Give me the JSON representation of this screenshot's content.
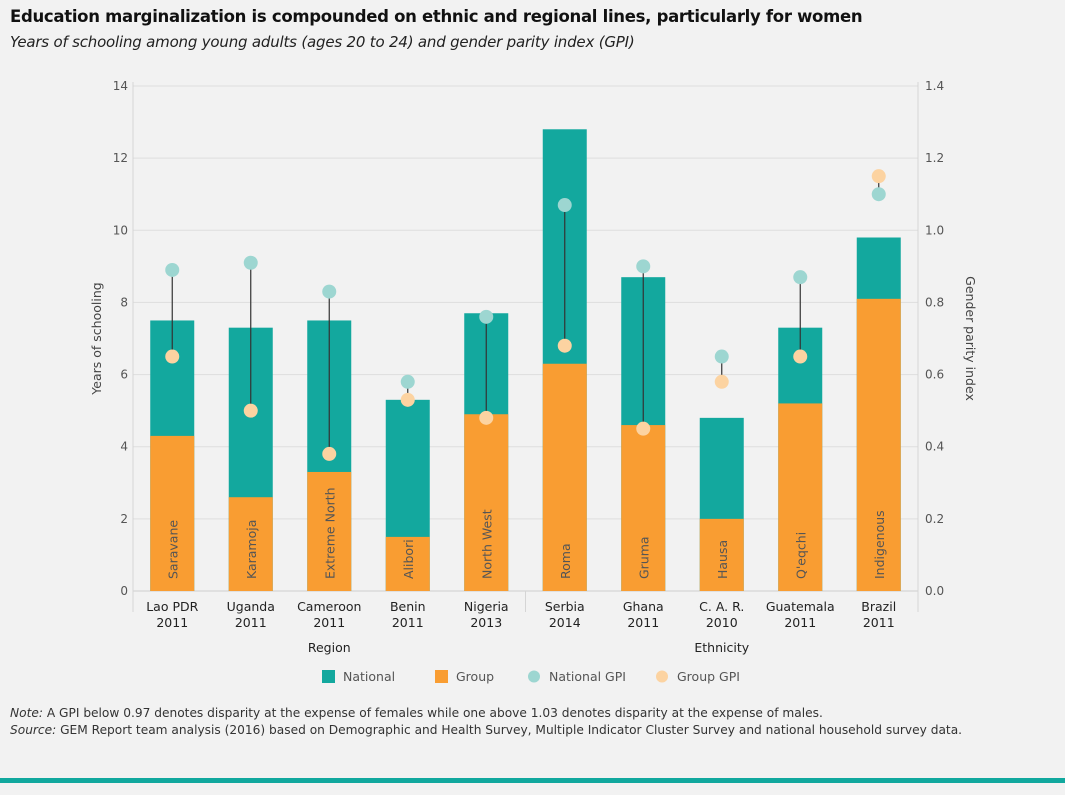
{
  "title": "Education marginalization is compounded on ethnic and regional lines, particularly for women",
  "subtitle": "Years of schooling among young adults (ages 20 to 24) and gender parity index (GPI)",
  "note_label": "Note:",
  "note_text": " A GPI below 0.97 denotes disparity at the expense of females while one above 1.03 denotes disparity at the expense of males.",
  "source_label": "Source:",
  "source_text": " GEM Report team analysis (2016) based on Demographic and Health Survey, Multiple Indicator Cluster Survey and national household survey data.",
  "chart_data": {
    "type": "bar",
    "categories": [
      "Lao PDR 2011",
      "Uganda 2011",
      "Cameroon 2011",
      "Benin 2011",
      "Nigeria 2013",
      "Serbia 2014",
      "Ghana 2011",
      "C. A. R. 2010",
      "Guatemala 2011",
      "Brazil 2011"
    ],
    "group_labels": [
      "Saravane",
      "Karamoja",
      "Extreme North",
      "Alibori",
      "North West",
      "Roma",
      "Gruma",
      "Hausa",
      "Q'eqchi",
      "Indigenous"
    ],
    "category_groups": [
      {
        "label": "Region",
        "count": 5
      },
      {
        "label": "Ethnicity",
        "count": 5
      }
    ],
    "ylabel": "Years of schooling",
    "y2label": "Gender parity index",
    "ylim": [
      0,
      14
    ],
    "y2lim": [
      0,
      1.4
    ],
    "yticks": [
      0,
      2,
      4,
      6,
      8,
      10,
      12,
      14
    ],
    "y2ticks": [
      "0.0",
      "0.2",
      "0.4",
      "0.6",
      "0.8",
      "1.0",
      "1.2",
      "1.4"
    ],
    "grid": true,
    "legend_placement": "bottom",
    "series": [
      {
        "name": "National",
        "type": "bar",
        "axis": "left",
        "color": "#13a89e",
        "values": [
          7.5,
          7.3,
          7.5,
          5.3,
          7.7,
          12.8,
          8.7,
          4.8,
          7.3,
          9.8
        ]
      },
      {
        "name": "Group",
        "type": "bar",
        "axis": "left",
        "color": "#f99d32",
        "values": [
          4.3,
          2.6,
          3.3,
          1.5,
          4.9,
          6.3,
          4.6,
          2.0,
          5.2,
          8.1
        ]
      },
      {
        "name": "National GPI",
        "type": "scatter",
        "axis": "right",
        "color": "#9dd6d1",
        "values": [
          0.89,
          0.91,
          0.83,
          0.58,
          0.76,
          1.07,
          0.9,
          0.65,
          0.87,
          1.1
        ]
      },
      {
        "name": "Group GPI",
        "type": "scatter",
        "axis": "right",
        "color": "#fcd3a1",
        "values": [
          0.65,
          0.5,
          0.38,
          0.53,
          0.48,
          0.68,
          0.45,
          0.58,
          0.65,
          1.15
        ]
      }
    ]
  }
}
